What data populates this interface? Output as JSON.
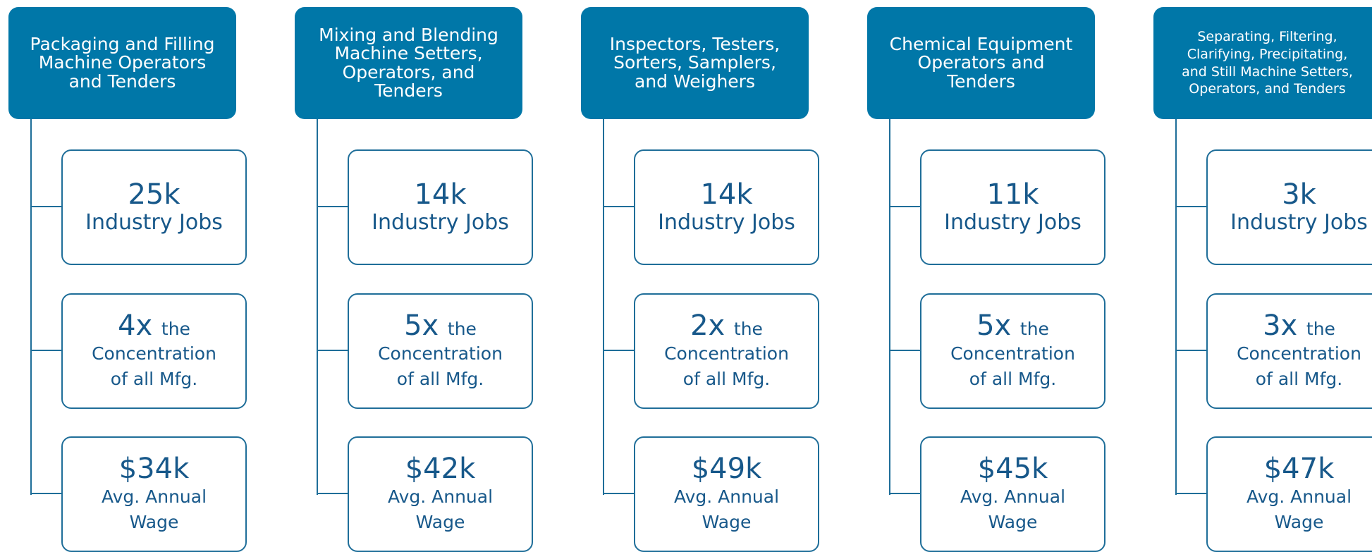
{
  "columns": [
    {
      "title": [
        "Packaging and Filling",
        "Machine Operators",
        "and Tenders"
      ],
      "jobs": {
        "value": "25k",
        "label": "Industry Jobs"
      },
      "concentration": {
        "value": "4x",
        "suffix": "the",
        "label": [
          "Concentration",
          "of all Mfg."
        ]
      },
      "wage": {
        "value": "$34k",
        "label": [
          "Avg. Annual",
          "Wage"
        ]
      }
    },
    {
      "title": [
        "Mixing and Blending",
        "Machine Setters,",
        "Operators, and",
        "Tenders"
      ],
      "jobs": {
        "value": "14k",
        "label": "Industry Jobs"
      },
      "concentration": {
        "value": "5x",
        "suffix": "the",
        "label": [
          "Concentration",
          "of all Mfg."
        ]
      },
      "wage": {
        "value": "$42k",
        "label": [
          "Avg. Annual",
          "Wage"
        ]
      }
    },
    {
      "title": [
        "Inspectors, Testers,",
        "Sorters, Samplers,",
        "and Weighers"
      ],
      "jobs": {
        "value": "14k",
        "label": "Industry Jobs"
      },
      "concentration": {
        "value": "2x",
        "suffix": "the",
        "label": [
          "Concentration",
          "of all Mfg."
        ]
      },
      "wage": {
        "value": "$49k",
        "label": [
          "Avg. Annual",
          "Wage"
        ]
      }
    },
    {
      "title": [
        "Chemical Equipment",
        "Operators and",
        "Tenders"
      ],
      "jobs": {
        "value": "11k",
        "label": "Industry Jobs"
      },
      "concentration": {
        "value": "5x",
        "suffix": "the",
        "label": [
          "Concentration",
          "of all Mfg."
        ]
      },
      "wage": {
        "value": "$45k",
        "label": [
          "Avg. Annual",
          "Wage"
        ]
      }
    },
    {
      "title": [
        "Separating, Filtering,",
        "Clarifying, Precipitating,",
        "and Still Machine Setters,",
        "Operators, and Tenders"
      ],
      "jobs": {
        "value": "3k",
        "label": "Industry Jobs"
      },
      "concentration": {
        "value": "3x",
        "suffix": "the",
        "label": [
          "Concentration",
          "of all Mfg."
        ]
      },
      "wage": {
        "value": "$47k",
        "label": [
          "Avg. Annual",
          "Wage"
        ]
      }
    }
  ]
}
